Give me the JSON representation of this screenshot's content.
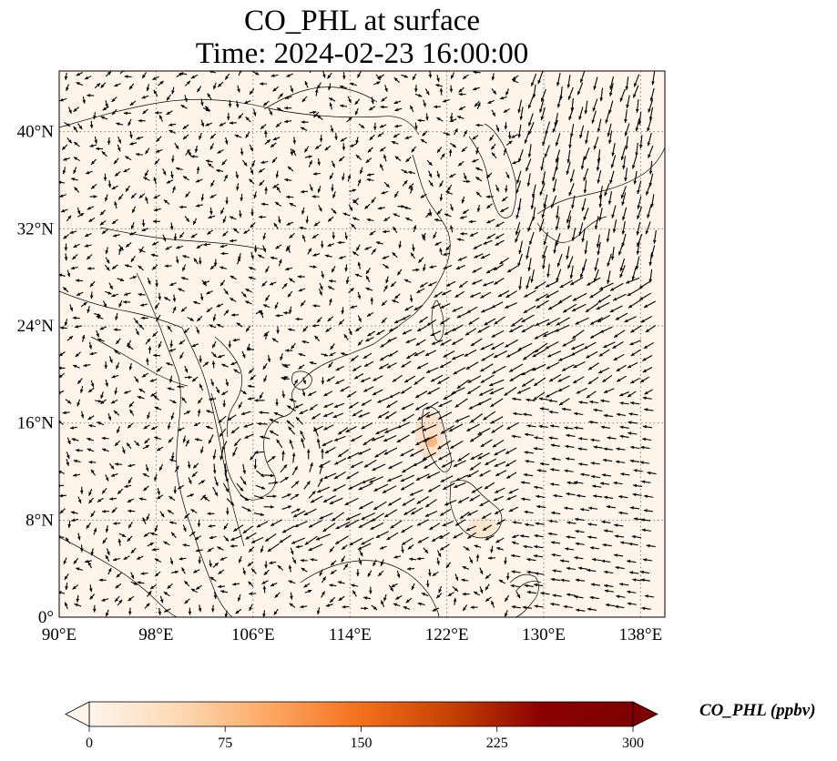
{
  "title": {
    "line1": "CO_PHL at surface",
    "line2": "Time: 2024-02-23 16:00:00"
  },
  "map": {
    "extent": {
      "lon": [
        90,
        140
      ],
      "lat": [
        0,
        45
      ]
    },
    "lon_ticks": [
      90,
      98,
      106,
      114,
      122,
      130,
      138
    ],
    "lon_tick_labels": [
      "90°E",
      "98°E",
      "106°E",
      "114°E",
      "122°E",
      "130°E",
      "138°E"
    ],
    "lat_ticks": [
      0,
      8,
      16,
      24,
      32,
      40
    ],
    "lat_tick_labels": [
      "0°",
      "8°N",
      "16°N",
      "24°N",
      "32°N",
      "40°N"
    ],
    "gridlines": true,
    "background_color": "#fff5eb",
    "coastline_color": "#000000",
    "vector_color": "#000000",
    "field": "wind vectors"
  },
  "colorbar": {
    "label": "CO_PHL (ppbv)",
    "min": 0,
    "max": 300,
    "ticks": [
      0,
      75,
      150,
      225,
      300
    ],
    "tick_labels": [
      "0",
      "75",
      "150",
      "225",
      "300"
    ],
    "colormap": [
      "#fff5eb",
      "#fdd9b4",
      "#fda762",
      "#f3701b",
      "#c54102",
      "#8b0000",
      "#7f0000"
    ],
    "extend": "both"
  }
}
